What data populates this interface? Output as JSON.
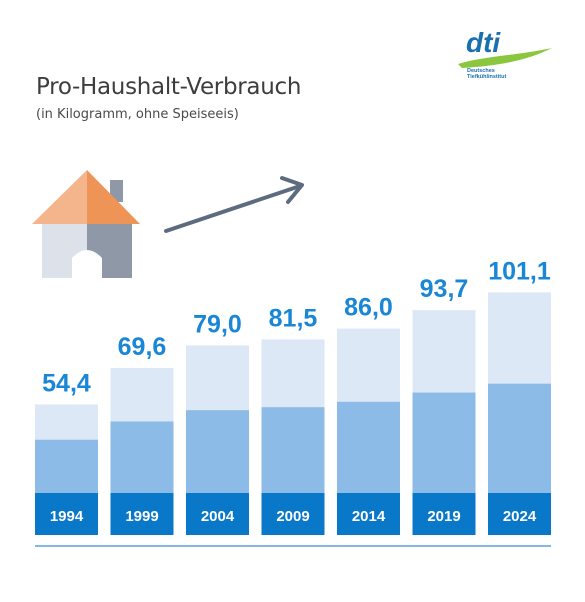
{
  "header": {
    "title": "Pro-Haushalt-Verbrauch",
    "subtitle": "(in Kilogramm, ohne Speiseeis)"
  },
  "logo": {
    "wordmark": "dti",
    "line1": "Deutsches",
    "line2": "Tiefkühlinstitut"
  },
  "icons": {
    "house": "house-icon",
    "arrow": "trend-arrow-icon"
  },
  "colors": {
    "dark_blue": "#0a78c8",
    "mid_blue": "#8bbbe6",
    "light_blue": "#dde8f6",
    "value_label": "#1a86d6",
    "baseline": "#5aa0dc",
    "house_roof_left": "#f4b48c",
    "house_roof_right": "#ee9457",
    "house_wall_left": "#dde2ea",
    "house_wall_right": "#8e98a6",
    "arrow": "#5d6b80",
    "logo_blue": "#1a6fb0",
    "logo_green": "#8cc63f"
  },
  "chart_data": {
    "type": "bar",
    "categories": [
      "1994",
      "1999",
      "2004",
      "2009",
      "2014",
      "2019",
      "2024"
    ],
    "values": [
      54.4,
      69.6,
      79.0,
      81.5,
      86.0,
      93.7,
      101.1
    ],
    "value_labels": [
      "54,4",
      "69,6",
      "79,0",
      "81,5",
      "86,0",
      "93,7",
      "101,1"
    ],
    "stacked_segments": "three shades of blue per bar",
    "title": "Pro-Haushalt-Verbrauch",
    "subtitle": "(in Kilogramm, ohne Speiseeis)",
    "xlabel": "",
    "ylabel": "",
    "grid": false,
    "legend": "none"
  }
}
